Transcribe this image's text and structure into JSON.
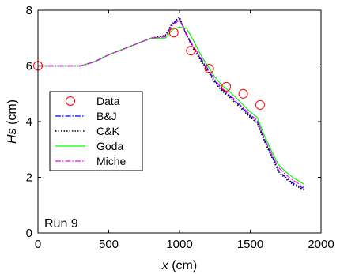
{
  "chart_data": {
    "type": "line",
    "title": "",
    "xlabel_var": "x",
    "xlabel_unit": " (cm)",
    "ylabel_var": "Hs",
    "ylabel_unit": " (cm)",
    "xlim": [
      0,
      2000
    ],
    "ylim": [
      0,
      8
    ],
    "xticks": [
      0,
      500,
      1000,
      1500,
      2000
    ],
    "yticks": [
      0,
      2,
      4,
      6,
      8
    ],
    "grid": false,
    "legend_position": "left",
    "annotation": "Run 9",
    "series": [
      {
        "name": "Data",
        "style": "markers",
        "marker": "circle",
        "color": "#ff0000",
        "x": [
          0,
          960,
          1080,
          1210,
          1330,
          1450,
          1570
        ],
        "y": [
          6.0,
          7.2,
          6.55,
          5.9,
          5.25,
          5.0,
          4.6
        ]
      },
      {
        "name": "B&J",
        "style": "dashdot",
        "color": "#0000ff",
        "x": [
          0,
          300,
          400,
          500,
          600,
          700,
          800,
          900,
          950,
          1000,
          1050,
          1100,
          1150,
          1200,
          1250,
          1300,
          1350,
          1400,
          1450,
          1500,
          1550,
          1600,
          1650,
          1700,
          1750,
          1800,
          1880
        ],
        "y": [
          6.0,
          6.0,
          6.15,
          6.4,
          6.6,
          6.8,
          7.0,
          7.05,
          7.5,
          7.7,
          7.1,
          6.65,
          6.25,
          5.85,
          5.45,
          5.15,
          4.95,
          4.7,
          4.45,
          4.2,
          4.0,
          3.35,
          2.8,
          2.25,
          2.0,
          1.8,
          1.6
        ]
      },
      {
        "name": "C&K",
        "style": "dotted",
        "color": "#000000",
        "x": [
          0,
          300,
          400,
          500,
          600,
          700,
          800,
          900,
          950,
          1000,
          1050,
          1100,
          1150,
          1200,
          1250,
          1300,
          1350,
          1400,
          1450,
          1500,
          1550,
          1600,
          1650,
          1700,
          1750,
          1800,
          1880
        ],
        "y": [
          6.0,
          6.0,
          6.15,
          6.4,
          6.6,
          6.8,
          7.0,
          7.1,
          7.55,
          7.75,
          7.1,
          6.6,
          6.2,
          5.8,
          5.4,
          5.1,
          4.9,
          4.65,
          4.4,
          4.15,
          3.95,
          3.3,
          2.75,
          2.2,
          1.95,
          1.75,
          1.55
        ]
      },
      {
        "name": "Goda",
        "style": "solid",
        "color": "#00ff00",
        "x": [
          0,
          300,
          400,
          500,
          600,
          700,
          800,
          900,
          950,
          1000,
          1050,
          1100,
          1150,
          1200,
          1250,
          1300,
          1350,
          1400,
          1450,
          1500,
          1550,
          1600,
          1650,
          1700,
          1750,
          1800,
          1880
        ],
        "y": [
          6.0,
          6.0,
          6.15,
          6.4,
          6.6,
          6.8,
          7.0,
          7.0,
          7.3,
          7.4,
          7.35,
          6.9,
          6.4,
          6.0,
          5.6,
          5.3,
          5.1,
          4.85,
          4.6,
          4.35,
          4.15,
          3.5,
          2.95,
          2.45,
          2.2,
          2.0,
          1.75
        ]
      },
      {
        "name": "Miche",
        "style": "dashdot",
        "color": "#ff00ff",
        "x": [
          0,
          300,
          400,
          500,
          600,
          700,
          800,
          900,
          950,
          1000,
          1050,
          1100,
          1150,
          1200,
          1250,
          1300,
          1350,
          1400,
          1450,
          1500,
          1550,
          1600,
          1650,
          1700,
          1750,
          1800,
          1880
        ],
        "y": [
          6.0,
          6.0,
          6.15,
          6.4,
          6.6,
          6.8,
          7.0,
          7.05,
          7.45,
          7.65,
          7.15,
          6.7,
          6.3,
          5.9,
          5.5,
          5.2,
          5.0,
          4.75,
          4.5,
          4.25,
          4.05,
          3.4,
          2.85,
          2.35,
          2.1,
          1.9,
          1.65
        ]
      }
    ]
  }
}
